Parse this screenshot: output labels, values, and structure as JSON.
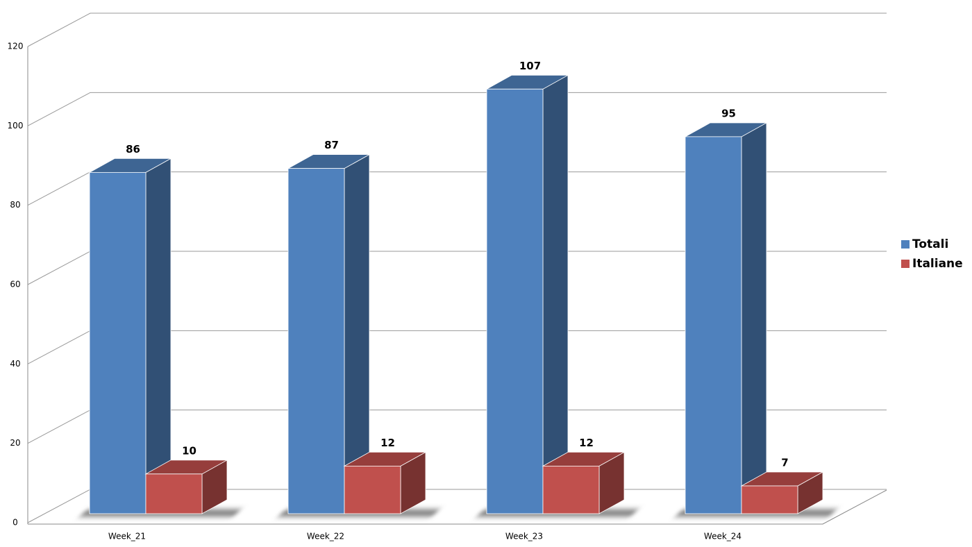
{
  "chart_data": {
    "type": "bar3d",
    "categories": [
      "Week_21",
      "Week_22",
      "Week_23",
      "Week_24"
    ],
    "series": [
      {
        "name": "Totali",
        "color": "#4f81bd",
        "values": [
          86,
          87,
          107,
          95
        ]
      },
      {
        "name": "Italiane",
        "color": "#c0504d",
        "values": [
          10,
          12,
          12,
          7
        ]
      }
    ],
    "ylim": [
      0,
      120
    ],
    "yticks": [
      0,
      20,
      40,
      60,
      80,
      100,
      120
    ],
    "grid": true,
    "legend": "right"
  }
}
